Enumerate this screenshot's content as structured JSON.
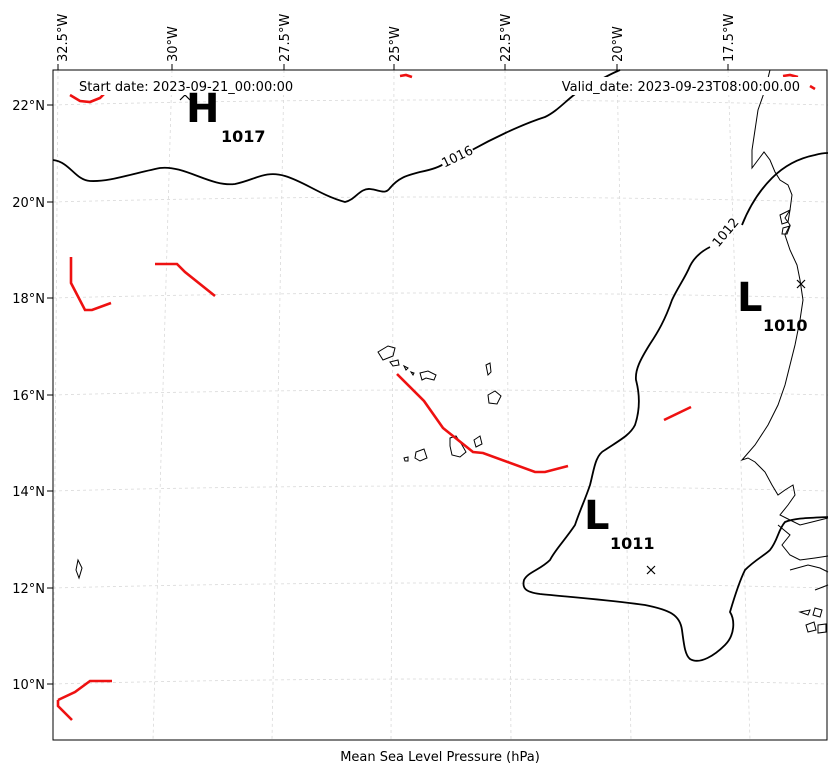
{
  "map": {
    "start_date": "Start date: 2023-09-21_00:00:00",
    "valid_date": "Valid_date: 2023-09-23T08:00:00.00",
    "xlabel": "Mean Sea Level Pressure (hPa)",
    "lon_ticks": [
      "32.5°W",
      "30°W",
      "27.5°W",
      "25°W",
      "22.5°W",
      "20°W",
      "17.5°W"
    ],
    "lat_ticks": [
      "22°N",
      "20°N",
      "18°N",
      "16°N",
      "14°N",
      "12°N",
      "10°N"
    ],
    "centers": [
      {
        "type": "H",
        "value": "1017"
      },
      {
        "type": "L",
        "value": "1010"
      },
      {
        "type": "L",
        "value": "1011"
      }
    ],
    "isobar_labels": [
      "1016",
      "1012"
    ],
    "colors": {
      "isobar": "#000000",
      "front": "#ee1111",
      "grid": "#cccccc",
      "coast": "#000000"
    }
  }
}
